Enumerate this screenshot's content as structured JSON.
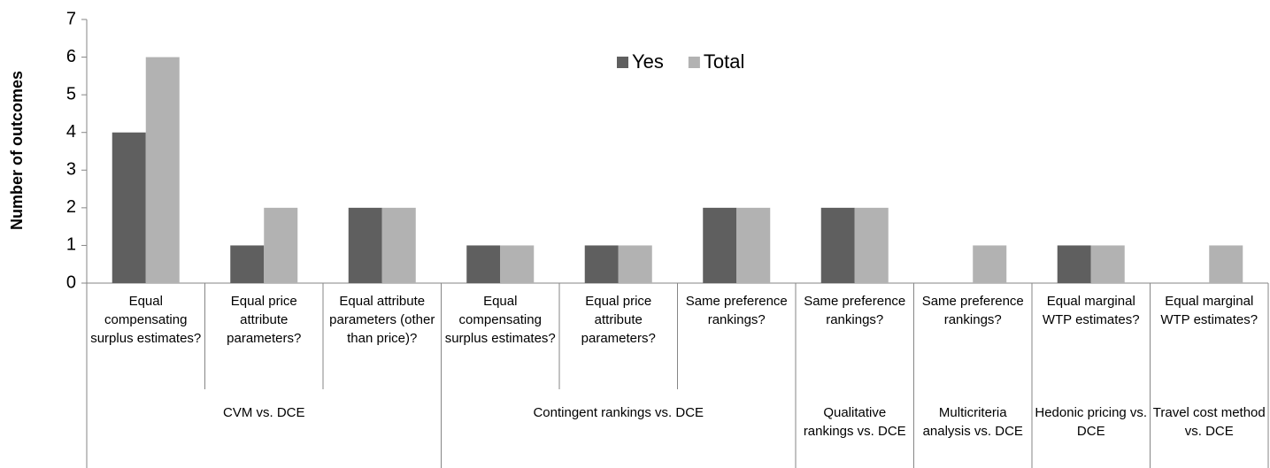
{
  "chart_data": {
    "type": "bar",
    "y_label": "Number of outcomes",
    "categories": [
      "Equal compensating surplus estimates?",
      "Equal price attribute parameters?",
      "Equal attribute parameters (other than price)?",
      "Equal compensating surplus estimates?",
      "Equal price attribute parameters?",
      "Same preference rankings?",
      "Same preference rankings?",
      "Same preference rankings?",
      "Equal marginal WTP estimates?",
      "Equal marginal WTP estimates?"
    ],
    "groups": [
      {
        "label": "CVM vs. DCE",
        "span": 3
      },
      {
        "label": "Contingent rankings vs. DCE",
        "span": 3
      },
      {
        "label": "Qualitative rankings vs. DCE",
        "span": 1
      },
      {
        "label": "Multicriteria analysis vs. DCE",
        "span": 1
      },
      {
        "label": "Hedonic pricing vs. DCE",
        "span": 1
      },
      {
        "label": "Travel cost method vs. DCE",
        "span": 1
      }
    ],
    "series": [
      {
        "name": "Yes",
        "color": "#5f5f5f",
        "values": [
          4,
          1,
          2,
          1,
          1,
          2,
          2,
          0,
          1,
          0
        ]
      },
      {
        "name": "Total",
        "color": "#b2b2b2",
        "values": [
          6,
          2,
          2,
          1,
          1,
          2,
          2,
          1,
          1,
          1
        ]
      }
    ],
    "ylim": [
      0,
      7
    ],
    "yticks": [
      0,
      1,
      2,
      3,
      4,
      5,
      6,
      7
    ],
    "grid": false,
    "legend": "top"
  }
}
